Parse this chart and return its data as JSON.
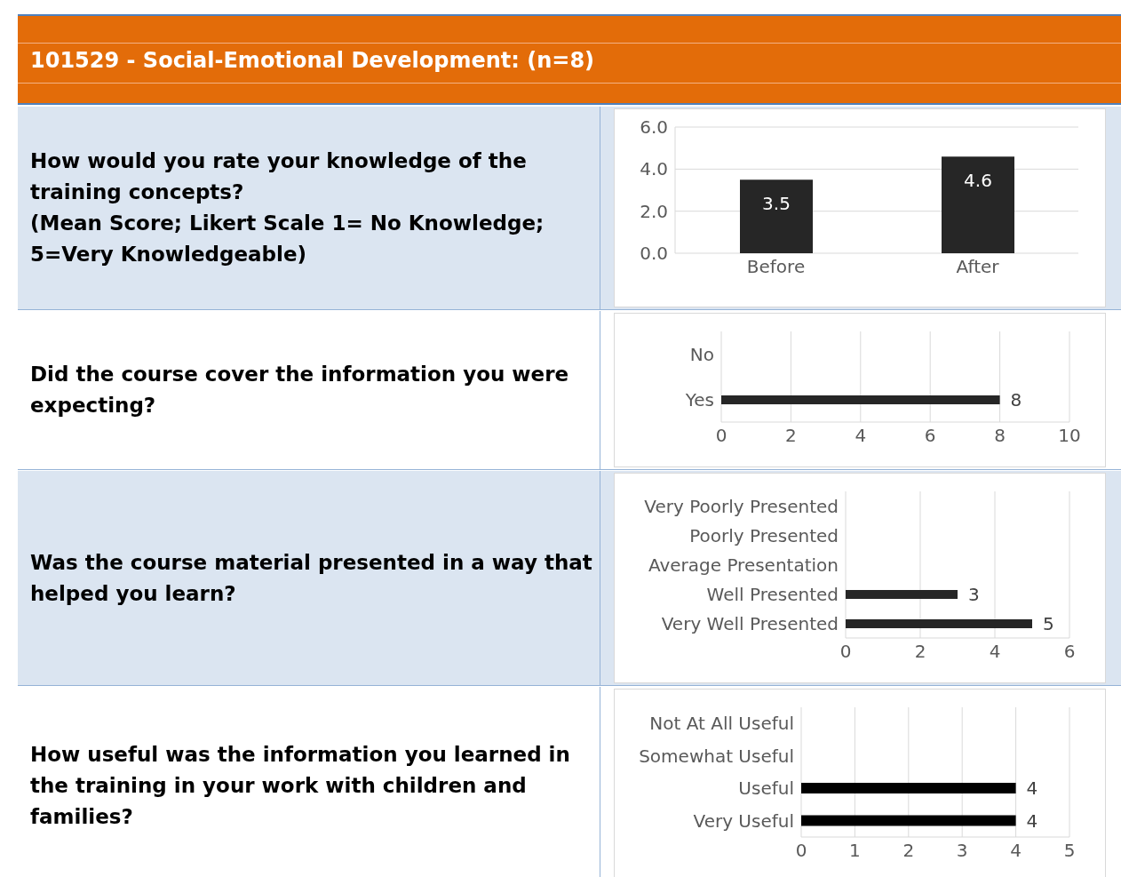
{
  "chart_data": [
    {
      "type": "other",
      "title": "101529 - Social-Emotional Development: (n=8)"
    },
    {
      "type": "bar",
      "title": "How would you rate your knowledge of the training concepts?",
      "subtitle": "(Mean Score; Likert Scale 1= No Knowledge; 5=Very Knowledgeable)",
      "categories": [
        "Before",
        "After"
      ],
      "values": [
        3.5,
        4.6
      ],
      "color": "#262626",
      "ylim": [
        0,
        6
      ],
      "yticks": [
        {
          "value": 0,
          "label": "0.0"
        },
        {
          "value": 2,
          "label": "2.0"
        },
        {
          "value": 4,
          "label": "4.0"
        },
        {
          "value": 6,
          "label": "6.0"
        }
      ],
      "grid": "y",
      "data_labels": true
    },
    {
      "type": "bar",
      "orientation": "horizontal",
      "title": "Did the course cover the information you were expecting?",
      "categories": [
        "No",
        "Yes"
      ],
      "values": [
        0,
        8
      ],
      "value_labels": [
        null,
        "8"
      ],
      "color": "#262626",
      "xlim": [
        0,
        10
      ],
      "xticks": [
        0,
        2,
        4,
        6,
        8,
        10
      ],
      "grid": "x"
    },
    {
      "type": "bar",
      "orientation": "horizontal",
      "title": "Was the course material presented in a way that helped you learn?",
      "categories": [
        "Very Poorly Presented",
        "Poorly Presented",
        "Average Presentation",
        "Well Presented",
        "Very Well Presented"
      ],
      "values": [
        0,
        0,
        0,
        3,
        5
      ],
      "value_labels": [
        null,
        null,
        null,
        "3",
        "5"
      ],
      "color": "#262626",
      "xlim": [
        0,
        6
      ],
      "xticks": [
        0,
        2,
        4,
        6
      ],
      "grid": "x"
    },
    {
      "type": "bar",
      "orientation": "horizontal",
      "title": "How useful was the information you learned in the training in your work with children and families?",
      "categories": [
        "Not At All Useful",
        "Somewhat Useful",
        "Useful",
        "Very Useful"
      ],
      "values": [
        0,
        0,
        4,
        4
      ],
      "value_labels": [
        null,
        null,
        "4",
        "4"
      ],
      "color": "#000000",
      "xlim": [
        0,
        5
      ],
      "xticks": [
        0,
        1,
        2,
        3,
        4,
        5
      ],
      "grid": "x"
    }
  ]
}
